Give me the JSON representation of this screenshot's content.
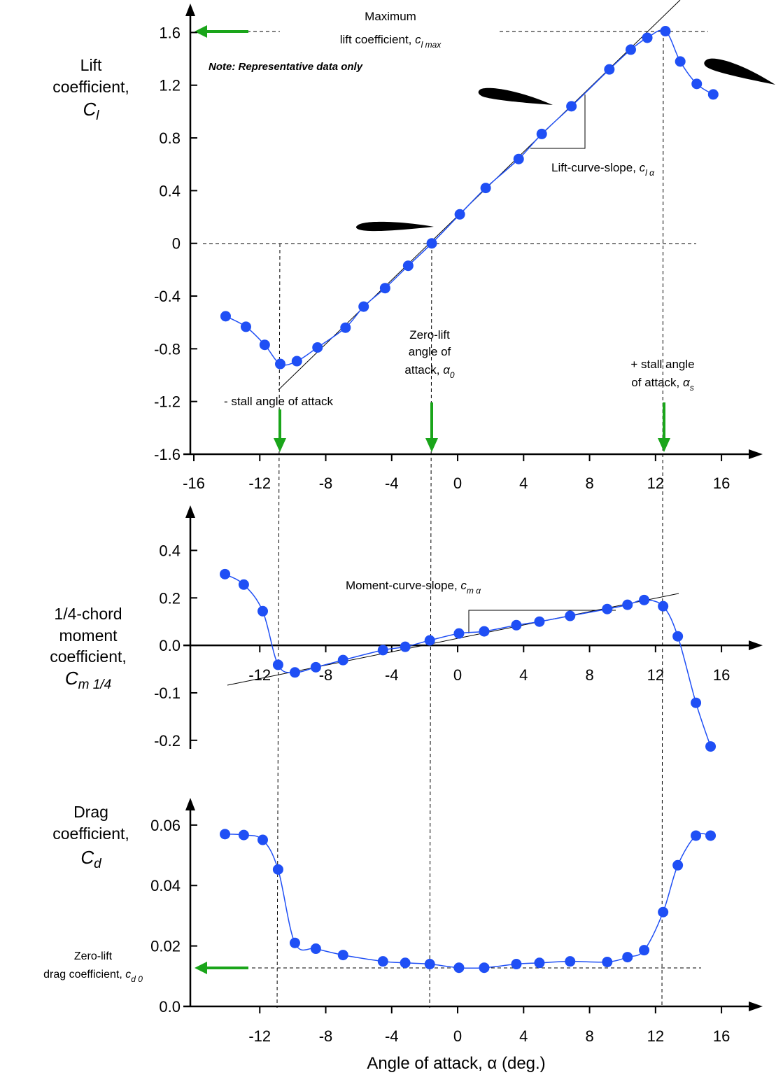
{
  "chart_data": [
    {
      "type": "line",
      "ylabel": [
        "Lift",
        "coefficient,"
      ],
      "ylabel_symbol": "C",
      "ylabel_subscript": "l",
      "x": [
        -14.07,
        -12.84,
        -11.7,
        -10.76,
        -9.75,
        -8.5,
        -6.8,
        -5.7,
        -4.4,
        -3.0,
        -1.57,
        0.13,
        1.7,
        3.7,
        5.1,
        6.9,
        9.2,
        10.5,
        11.5,
        12.6,
        13.5,
        14.5,
        15.5
      ],
      "values": [
        -0.553,
        -0.633,
        -0.77,
        -0.915,
        -0.894,
        -0.79,
        -0.64,
        -0.48,
        -0.34,
        -0.17,
        0.0,
        0.22,
        0.42,
        0.64,
        0.83,
        1.04,
        1.32,
        1.47,
        1.56,
        1.61,
        1.38,
        1.21,
        1.13
      ],
      "color": "#1f4ff5",
      "xlim": [
        -16,
        18.5
      ],
      "ylim": [
        -1.6,
        1.82
      ],
      "xticks": [
        -16,
        -12,
        -8,
        -4,
        0,
        4,
        8,
        12,
        16
      ],
      "yticks": [
        -1.6,
        -1.2,
        -0.8,
        -0.4,
        0,
        0.4,
        0.8,
        1.2,
        1.6
      ],
      "x_axis_at": -1.6,
      "annotations": [
        {
          "text": "Maximum"
        },
        {
          "text": "lift coefficient, ",
          "symbol": "c",
          "subscript": "l max"
        },
        {
          "text": "Note: Representative data only"
        },
        {
          "text": "Lift-curve-slope, ",
          "symbol": "c",
          "subscript": "l α"
        },
        {
          "text": "Zero-lift"
        },
        {
          "text": "angle of"
        },
        {
          "text": "attack, ",
          "symbol": "α",
          "subscript": "0"
        },
        {
          "text": "+ stall angle"
        },
        {
          "text": "of attack, ",
          "symbol": "α",
          "subscript": "s"
        },
        {
          "text": "- stall angle of attack"
        }
      ]
    },
    {
      "type": "line",
      "ylabel": [
        "1/4-chord",
        "moment",
        "coefficient,"
      ],
      "ylabel_symbol": "C",
      "ylabel_subscript": "m 1/4",
      "x": [
        -14.11,
        -12.97,
        -11.82,
        -10.89,
        -9.87,
        -8.6,
        -6.95,
        -4.53,
        -3.18,
        -1.69,
        0.08,
        1.61,
        3.56,
        4.96,
        6.82,
        9.07,
        10.3,
        11.31,
        12.46,
        13.35,
        14.45,
        15.34
      ],
      "values": [
        0.3,
        0.256,
        0.144,
        -0.041,
        -0.057,
        -0.046,
        -0.031,
        -0.01,
        -0.003,
        0.021,
        0.05,
        0.059,
        0.085,
        0.1,
        0.124,
        0.153,
        0.171,
        0.191,
        0.165,
        0.038,
        -0.121,
        -0.213
      ],
      "color": "#1f4ff5",
      "xlim": [
        -16,
        18.5
      ],
      "ylim": [
        -0.218,
        0.59
      ],
      "xticks": [
        -12,
        -8,
        -4,
        0,
        4,
        8,
        12,
        16
      ],
      "yticks": [
        -0.2,
        -0.1,
        {
          "value": 0,
          "label": "0.0"
        },
        0.2,
        0.4
      ],
      "x_axis_at": 0,
      "annotations": [
        {
          "text": "Moment-curve-slope, ",
          "symbol": "c",
          "subscript": "m α"
        }
      ]
    },
    {
      "type": "line",
      "ylabel": [
        "Drag",
        "coefficient,"
      ],
      "ylabel_symbol": "C",
      "ylabel_subscript": "d",
      "xlabel": "Angle of attack, α (deg.)",
      "x": [
        -14.11,
        -12.97,
        -11.82,
        -10.89,
        -9.87,
        -8.6,
        -6.95,
        -4.53,
        -3.18,
        -1.69,
        0.08,
        1.61,
        3.56,
        4.96,
        6.82,
        9.07,
        10.3,
        11.31,
        12.46,
        13.35,
        14.45,
        15.34
      ],
      "values": [
        0.057,
        0.0567,
        0.0551,
        0.0453,
        0.021,
        0.0191,
        0.017,
        0.0149,
        0.0144,
        0.014,
        0.0128,
        0.0128,
        0.014,
        0.0144,
        0.0149,
        0.0147,
        0.0163,
        0.0186,
        0.0312,
        0.0467,
        0.0565,
        0.0565
      ],
      "color": "#1f4ff5",
      "xlim": [
        -16,
        18.5
      ],
      "ylim": [
        0,
        0.069
      ],
      "xticks": [
        -12,
        -8,
        -4,
        0,
        4,
        8,
        12,
        16
      ],
      "yticks": [
        {
          "value": 0,
          "label": "0.0"
        },
        0.02,
        0.04,
        0.06
      ],
      "x_axis_at": 0,
      "annotations": [
        {
          "text": "Zero-lift"
        },
        {
          "text": "drag coefficient, ",
          "symbol": "c",
          "subscript": "d 0"
        }
      ]
    }
  ]
}
